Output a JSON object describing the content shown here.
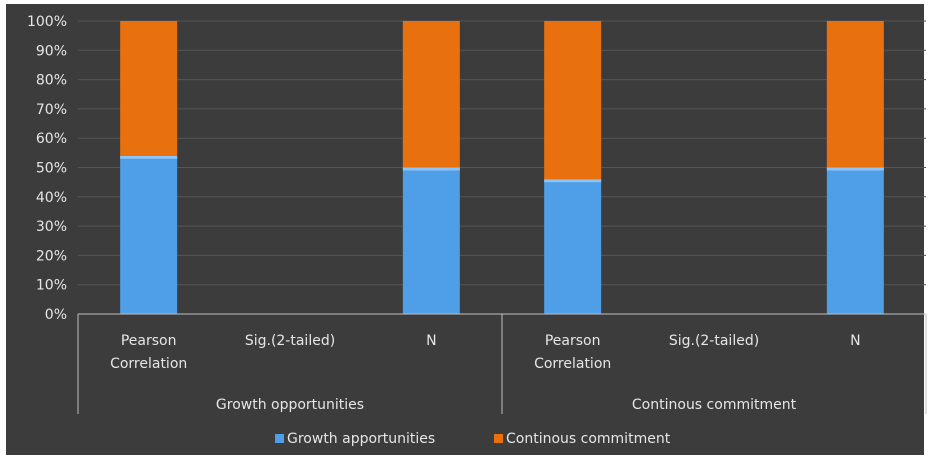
{
  "chart_data": {
    "type": "bar",
    "stacked": "percent",
    "y_tick_labels": [
      "0%",
      "10%",
      "20%",
      "30%",
      "40%",
      "50%",
      "60%",
      "70%",
      "80%",
      "90%",
      "100%"
    ],
    "ylim": [
      0,
      100
    ],
    "grid": true,
    "legend_position": "bottom",
    "categories": [
      {
        "label": [
          "Pearson",
          "Correlation"
        ],
        "group": 0
      },
      {
        "label": [
          "Sig.(2-tailed)"
        ],
        "group": 0
      },
      {
        "label": [
          "N"
        ],
        "group": 0
      },
      {
        "label": [
          "Pearson",
          "Correlation"
        ],
        "group": 1
      },
      {
        "label": [
          "Sig.(2-tailed)"
        ],
        "group": 1
      },
      {
        "label": [
          "N"
        ],
        "group": 1
      }
    ],
    "groups": [
      "Growth opportunities",
      "Continous commitment"
    ],
    "series": [
      {
        "name": "Growth apportunities",
        "color": "#4f9ee8",
        "values": [
          54,
          null,
          50,
          46,
          null,
          50
        ]
      },
      {
        "name": "Continous commitment",
        "color": "#e8700e",
        "values": [
          46,
          null,
          50,
          54,
          null,
          50
        ]
      }
    ],
    "colors": {
      "background": "#3c3c3c",
      "grid": "#555555",
      "text": "#e6e6e6",
      "axis": "#bfbfbf"
    }
  }
}
